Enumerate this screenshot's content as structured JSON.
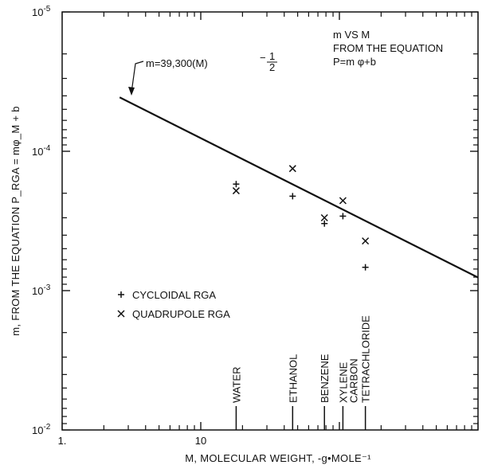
{
  "chart_data": {
    "type": "scatter",
    "x_scale": "log",
    "y_scale": "log",
    "y_inverted": true,
    "xlim": [
      1,
      1000
    ],
    "ylim": [
      1e-05,
      0.01
    ],
    "grid": false,
    "legend_position": "left-middle",
    "x_ticks": [
      {
        "value": 1,
        "label": "1."
      },
      {
        "value": 10,
        "label": "10"
      }
    ],
    "y_ticks": [
      {
        "value": 1e-05,
        "base": "10",
        "exp": "-5"
      },
      {
        "value": 0.0001,
        "base": "10",
        "exp": "-4"
      },
      {
        "value": 0.001,
        "base": "10",
        "exp": "-3"
      },
      {
        "value": 0.01,
        "base": "10",
        "exp": "-2"
      }
    ],
    "xlabel": "M, MOLECULAR WEIGHT, -g•MOLE⁻¹",
    "ylabel": "m, FROM THE EQUATION P_RGA = mφ_M + b",
    "title_lines": [
      "m VS M",
      "FROM THE EQUATION",
      "P=m φ+b"
    ],
    "fit_line": {
      "label": "m=39,300(M)^-1/2",
      "label_main": "m=39,300(M)",
      "label_num": "1",
      "label_den": "2",
      "label_minus": "−",
      "x_range": [
        2.6,
        1000
      ]
    },
    "series": [
      {
        "name": "CYCLOIDAL RGA",
        "marker": "+",
        "points": [
          {
            "x": 18,
            "y": 0.000172
          },
          {
            "x": 46,
            "y": 0.00021
          },
          {
            "x": 78,
            "y": 0.00033
          },
          {
            "x": 106,
            "y": 0.000292
          },
          {
            "x": 154,
            "y": 0.00068
          }
        ]
      },
      {
        "name": "QUADRUPOLE RGA",
        "marker": "x",
        "points": [
          {
            "x": 18,
            "y": 0.000192
          },
          {
            "x": 46,
            "y": 0.000133
          },
          {
            "x": 78,
            "y": 0.0003
          },
          {
            "x": 106,
            "y": 0.000226
          },
          {
            "x": 154,
            "y": 0.00044
          }
        ]
      }
    ],
    "compound_labels": [
      {
        "x": 18,
        "lines": [
          "WATER"
        ]
      },
      {
        "x": 46,
        "lines": [
          "ETHANOL"
        ]
      },
      {
        "x": 78,
        "lines": [
          "BENZENE"
        ]
      },
      {
        "x": 106,
        "lines": [
          "XYLENE"
        ]
      },
      {
        "x": 154,
        "lines": [
          "CARBON",
          "TETRACHLORIDE"
        ]
      }
    ]
  }
}
